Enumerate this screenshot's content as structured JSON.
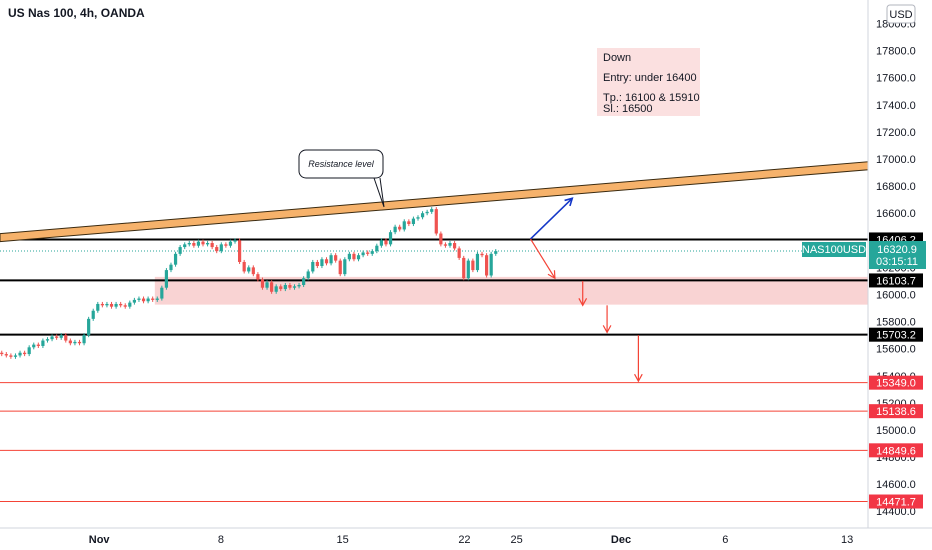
{
  "header": {
    "title": "US Nas 100, 4h, OANDA",
    "currency": "USD"
  },
  "colors": {
    "up": "#26a69a",
    "down": "#ef5350",
    "resistance_fill": "#f6b26b",
    "zone_fill": "#f9d3d3",
    "target_line": "#f44336",
    "blue_arrow": "#1437c8",
    "symbol_badge": "#26a69a",
    "level_badge": "#000000",
    "target_badge": "#f23645"
  },
  "chart_data": {
    "type": "candlestick",
    "title": "US Nas 100, 4h, OANDA",
    "timeframe": "4h",
    "ylim": [
      14350,
      18100
    ],
    "y_ticks": [
      14400,
      14600,
      14800,
      15000,
      15200,
      15400,
      15600,
      15800,
      16000,
      16200,
      16400,
      16600,
      16800,
      17000,
      17200,
      17400,
      17600,
      17800,
      18000
    ],
    "y_tick_labels": [
      "14400.0",
      "14600.0",
      "14800.0",
      "15000.0",
      "15200.0",
      "15400.0",
      "15600.0",
      "15800.0",
      "16000.0",
      "16200.0",
      "16400.0",
      "16600.0",
      "16800.0",
      "17000.0",
      "17200.0",
      "17400.0",
      "17600.0",
      "17800.0",
      "18000.0"
    ],
    "x_ticks": [
      "Nov",
      "8",
      "15",
      "22",
      "25",
      "Dec",
      "6",
      "13"
    ],
    "x_tick_days": [
      1,
      8,
      15,
      22,
      25,
      31,
      37,
      44
    ],
    "x_range_days": [
      -4.7,
      45.2
    ],
    "candles_open_close": [
      [
        15570,
        15560
      ],
      [
        15560,
        15550
      ],
      [
        15550,
        15540
      ],
      [
        15540,
        15550
      ],
      [
        15550,
        15570
      ],
      [
        15570,
        15560
      ],
      [
        15560,
        15610
      ],
      [
        15610,
        15630
      ],
      [
        15630,
        15620
      ],
      [
        15620,
        15660
      ],
      [
        15660,
        15670
      ],
      [
        15670,
        15690
      ],
      [
        15690,
        15680
      ],
      [
        15680,
        15700
      ],
      [
        15700,
        15660
      ],
      [
        15660,
        15640
      ],
      [
        15640,
        15650
      ],
      [
        15650,
        15640
      ],
      [
        15640,
        15700
      ],
      [
        15700,
        15820
      ],
      [
        15820,
        15880
      ],
      [
        15880,
        15930
      ],
      [
        15930,
        15920
      ],
      [
        15920,
        15930
      ],
      [
        15930,
        15910
      ],
      [
        15910,
        15930
      ],
      [
        15930,
        15920
      ],
      [
        15920,
        15910
      ],
      [
        15910,
        15940
      ],
      [
        15940,
        15960
      ],
      [
        15960,
        15970
      ],
      [
        15970,
        15950
      ],
      [
        15950,
        15970
      ],
      [
        15970,
        15960
      ],
      [
        15960,
        15970
      ],
      [
        15970,
        16050
      ],
      [
        16050,
        16180
      ],
      [
        16180,
        16220
      ],
      [
        16220,
        16300
      ],
      [
        16300,
        16350
      ],
      [
        16350,
        16370
      ],
      [
        16370,
        16380
      ],
      [
        16380,
        16360
      ],
      [
        16360,
        16390
      ],
      [
        16390,
        16370
      ],
      [
        16370,
        16380
      ],
      [
        16380,
        16350
      ],
      [
        16350,
        16320
      ],
      [
        16320,
        16370
      ],
      [
        16370,
        16360
      ],
      [
        16360,
        16390
      ],
      [
        16390,
        16400
      ],
      [
        16400,
        16240
      ],
      [
        16240,
        16170
      ],
      [
        16170,
        16200
      ],
      [
        16200,
        16150
      ],
      [
        16150,
        16110
      ],
      [
        16110,
        16050
      ],
      [
        16050,
        16090
      ],
      [
        16090,
        16020
      ],
      [
        16020,
        16060
      ],
      [
        16060,
        16040
      ],
      [
        16040,
        16070
      ],
      [
        16070,
        16050
      ],
      [
        16050,
        16060
      ],
      [
        16060,
        16070
      ],
      [
        16070,
        16120
      ],
      [
        16120,
        16170
      ],
      [
        16170,
        16240
      ],
      [
        16240,
        16210
      ],
      [
        16210,
        16260
      ],
      [
        16260,
        16230
      ],
      [
        16230,
        16290
      ],
      [
        16290,
        16250
      ],
      [
        16250,
        16150
      ],
      [
        16150,
        16260
      ],
      [
        16260,
        16300
      ],
      [
        16300,
        16260
      ],
      [
        16260,
        16290
      ],
      [
        16290,
        16310
      ],
      [
        16310,
        16300
      ],
      [
        16300,
        16320
      ],
      [
        16320,
        16360
      ],
      [
        16360,
        16400
      ],
      [
        16400,
        16370
      ],
      [
        16370,
        16460
      ],
      [
        16460,
        16500
      ],
      [
        16500,
        16480
      ],
      [
        16480,
        16540
      ],
      [
        16540,
        16520
      ],
      [
        16520,
        16560
      ],
      [
        16560,
        16570
      ],
      [
        16570,
        16600
      ],
      [
        16600,
        16610
      ],
      [
        16610,
        16630
      ],
      [
        16630,
        16450
      ],
      [
        16450,
        16370
      ],
      [
        16370,
        16360
      ],
      [
        16360,
        16380
      ],
      [
        16380,
        16340
      ],
      [
        16340,
        16270
      ],
      [
        16270,
        16120
      ],
      [
        16120,
        16250
      ],
      [
        16250,
        16180
      ],
      [
        16180,
        16300
      ],
      [
        16300,
        16290
      ],
      [
        16290,
        16140
      ],
      [
        16140,
        16300
      ],
      [
        16300,
        16320
      ]
    ],
    "resistance_line": {
      "label": "Resistance level",
      "from": {
        "day": -4.7,
        "price": 16420
      },
      "to": {
        "day": 45.2,
        "price": 16950
      }
    },
    "demand_zone": {
      "from_day": 4.2,
      "to_day": 45.2,
      "price_low": 15925,
      "price_high": 16130
    },
    "horizontal_levels": [
      {
        "price": 16406.2,
        "label": "16406.2",
        "style": "black"
      },
      {
        "price": 16103.7,
        "label": "16103.7",
        "style": "black"
      },
      {
        "price": 15703.2,
        "label": "15703.2",
        "style": "black"
      },
      {
        "price": 15349.0,
        "label": "15349.0",
        "style": "red"
      },
      {
        "price": 15138.6,
        "label": "15138.6",
        "style": "red"
      },
      {
        "price": 14849.6,
        "label": "14849.6",
        "style": "red"
      },
      {
        "price": 14471.7,
        "label": "14471.7",
        "style": "red"
      }
    ],
    "current_price": {
      "symbol": "NAS100USD",
      "price": 16320.9,
      "label": "16320.9",
      "countdown": "03:15:11"
    },
    "annotation": {
      "lines": [
        "Down",
        "Entry: under 16400",
        "Tp.: 16100 & 15910",
        "Sl.: 16500"
      ]
    },
    "arrows": [
      {
        "color": "blue",
        "from": {
          "day": 25.8,
          "price": 16410
        },
        "to": {
          "day": 28.2,
          "price": 16710
        }
      },
      {
        "color": "red",
        "from": {
          "day": 25.8,
          "price": 16410
        },
        "to": {
          "day": 27.2,
          "price": 16120
        }
      },
      {
        "color": "red",
        "from": {
          "day": 28.8,
          "price": 16100
        },
        "to": {
          "day": 28.8,
          "price": 15920
        }
      },
      {
        "color": "red",
        "from": {
          "day": 30.2,
          "price": 15920
        },
        "to": {
          "day": 30.2,
          "price": 15720
        }
      },
      {
        "color": "red",
        "from": {
          "day": 32.0,
          "price": 15700
        },
        "to": {
          "day": 32.0,
          "price": 15360
        }
      }
    ]
  }
}
